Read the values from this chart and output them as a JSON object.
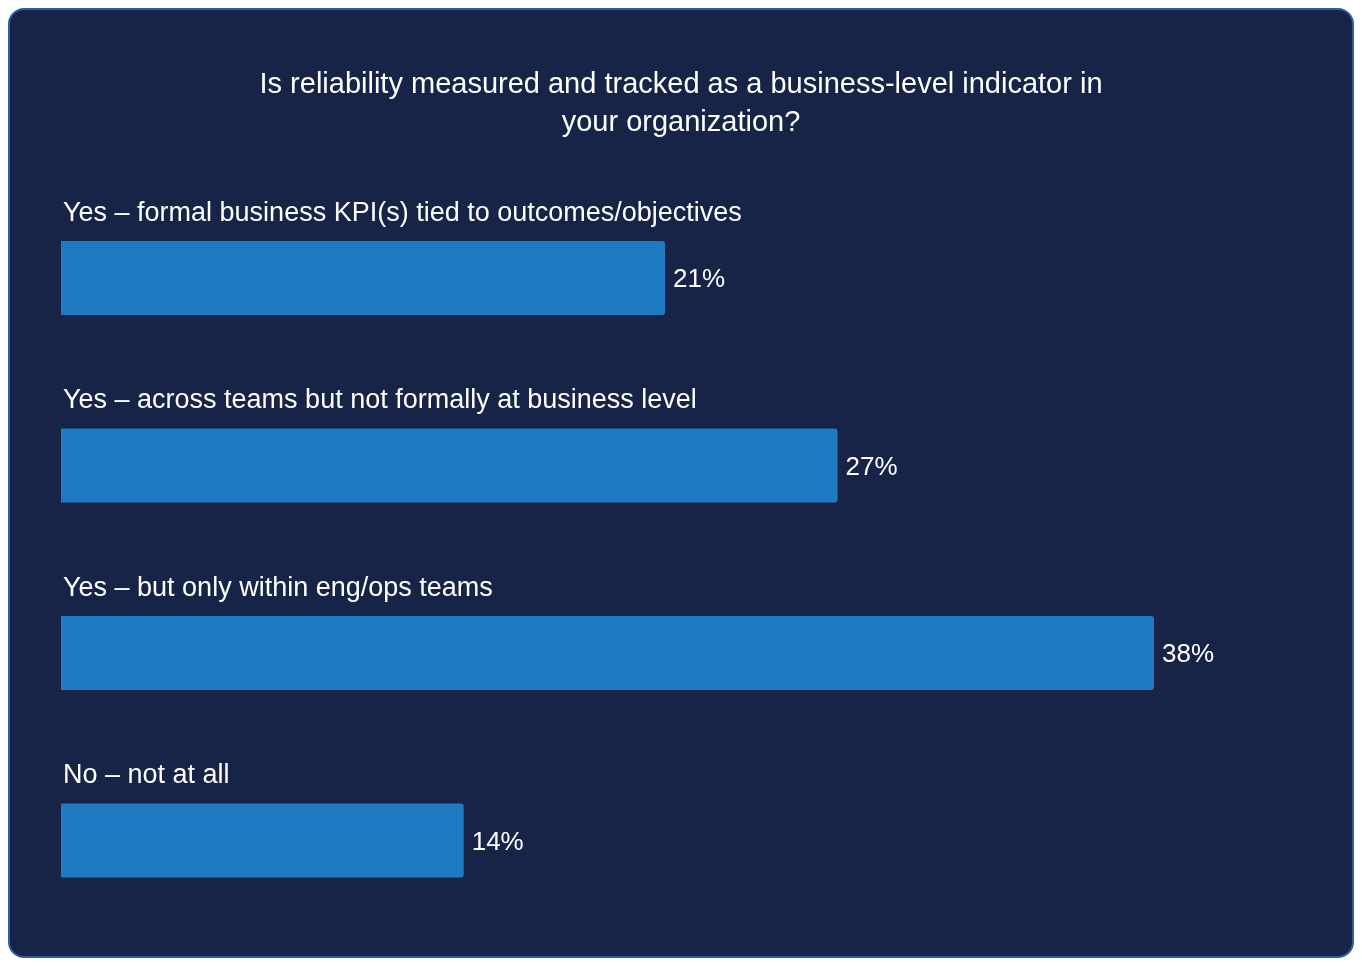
{
  "chart_data": {
    "type": "bar",
    "orientation": "horizontal",
    "title": "Is reliability measured and tracked as a business-level indicator in your organization?",
    "categories": [
      "Yes – formal business KPI(s) tied to outcomes/objectives",
      "Yes – across teams but not formally at business level",
      "Yes – but only within eng/ops teams",
      "No – not at all"
    ],
    "values": [
      21,
      27,
      38,
      14
    ],
    "value_labels": [
      "21%",
      "27%",
      "38%",
      "14%"
    ],
    "color": "#1f7bc1"
  }
}
